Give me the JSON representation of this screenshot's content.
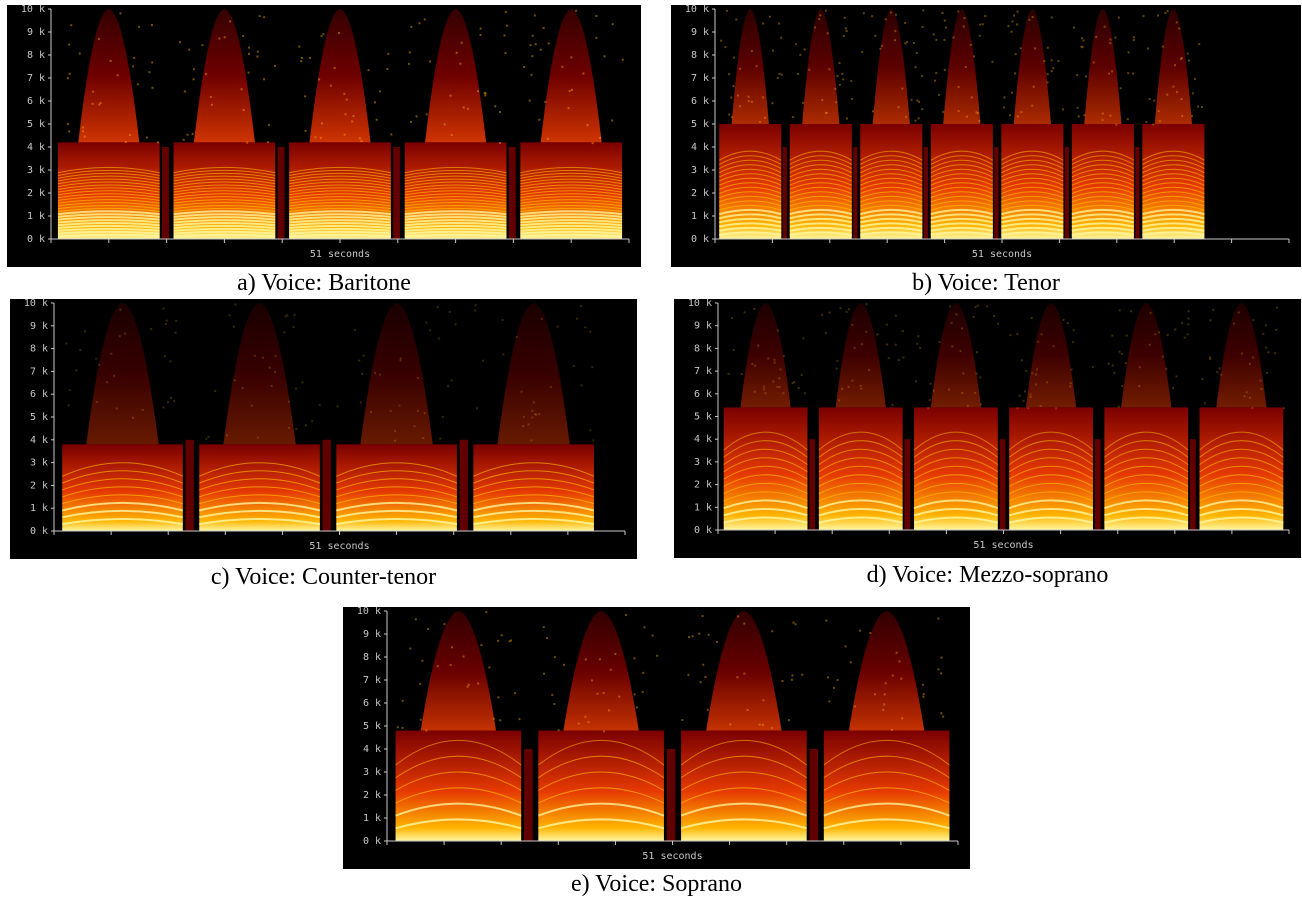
{
  "figure": {
    "panels": [
      {
        "id": "a",
        "caption": "a) Voice: Baritone",
        "time_label": "51 seconds",
        "notes": 5,
        "formant_top_k": 4.2,
        "harmonic_spacing_k": 0.12,
        "upper_energy": 0.9,
        "vibrato": 0.12
      },
      {
        "id": "b",
        "caption": "b) Voice: Tenor",
        "time_label": "51 seconds",
        "notes": 7,
        "formant_top_k": 5.0,
        "harmonic_spacing_k": 0.18,
        "upper_energy": 0.75,
        "vibrato": 0.18,
        "end_fraction": 0.86
      },
      {
        "id": "c",
        "caption": "c) Voice: Counter-tenor",
        "time_label": "51 seconds",
        "notes": 4,
        "formant_top_k": 3.8,
        "harmonic_spacing_k": 0.3,
        "upper_energy": 0.45,
        "vibrato": 0.35,
        "end_fraction": 0.96
      },
      {
        "id": "d",
        "caption": "d) Voice: Mezzo-soprano",
        "time_label": "51 seconds",
        "notes": 6,
        "formant_top_k": 5.4,
        "harmonic_spacing_k": 0.32,
        "upper_energy": 0.5,
        "vibrato": 0.35
      },
      {
        "id": "e",
        "caption": "e) Voice: Soprano",
        "time_label": "51 seconds",
        "notes": 4,
        "formant_top_k": 4.8,
        "harmonic_spacing_k": 0.55,
        "upper_energy": 0.85,
        "vibrato": 0.5
      }
    ],
    "y_ticks": [
      "0 k",
      "1 k",
      "2 k",
      "3 k",
      "4 k",
      "5 k",
      "6 k",
      "7 k",
      "8 k",
      "9 k",
      "10 k"
    ]
  },
  "chart_data": [
    {
      "type": "heatmap",
      "title": "",
      "subtitle": "a) Voice: Baritone",
      "xlabel": "51 seconds",
      "ylabel": "",
      "y_ticks": [
        "0 k",
        "1 k",
        "2 k",
        "3 k",
        "4 k",
        "5 k",
        "6 k",
        "7 k",
        "8 k",
        "9 k",
        "10 k"
      ],
      "ylim": [
        0,
        10
      ],
      "y_unit": "k"
    },
    {
      "type": "heatmap",
      "title": "",
      "subtitle": "b) Voice: Tenor",
      "xlabel": "51 seconds",
      "ylabel": "",
      "y_ticks": [
        "0 k",
        "1 k",
        "2 k",
        "3 k",
        "4 k",
        "5 k",
        "6 k",
        "7 k",
        "8 k",
        "9 k",
        "10 k"
      ],
      "ylim": [
        0,
        10
      ],
      "y_unit": "k"
    },
    {
      "type": "heatmap",
      "title": "",
      "subtitle": "c) Voice: Counter-tenor",
      "xlabel": "51 seconds",
      "ylabel": "",
      "y_ticks": [
        "0 k",
        "1 k",
        "2 k",
        "3 k",
        "4 k",
        "5 k",
        "6 k",
        "7 k",
        "8 k",
        "9 k",
        "10 k"
      ],
      "ylim": [
        0,
        10
      ],
      "y_unit": "k"
    },
    {
      "type": "heatmap",
      "title": "",
      "subtitle": "d) Voice: Mezzo-soprano",
      "xlabel": "51 seconds",
      "ylabel": "",
      "y_ticks": [
        "0 k",
        "1 k",
        "2 k",
        "3 k",
        "4 k",
        "5 k",
        "6 k",
        "7 k",
        "8 k",
        "9 k",
        "10 k"
      ],
      "ylim": [
        0,
        10
      ],
      "y_unit": "k"
    },
    {
      "type": "heatmap",
      "title": "",
      "subtitle": "e) Voice: Soprano",
      "xlabel": "51 seconds",
      "ylabel": "",
      "y_ticks": [
        "0 k",
        "1 k",
        "2 k",
        "3 k",
        "4 k",
        "5 k",
        "6 k",
        "7 k",
        "8 k",
        "9 k",
        "10 k"
      ],
      "ylim": [
        0,
        10
      ],
      "y_unit": "k"
    }
  ],
  "colors": {
    "background": "#000000",
    "low": "#7a0000",
    "mid": "#e63a00",
    "high": "#ffb400",
    "peak": "#fff7a0",
    "axis_text": "#c8c8c8"
  }
}
